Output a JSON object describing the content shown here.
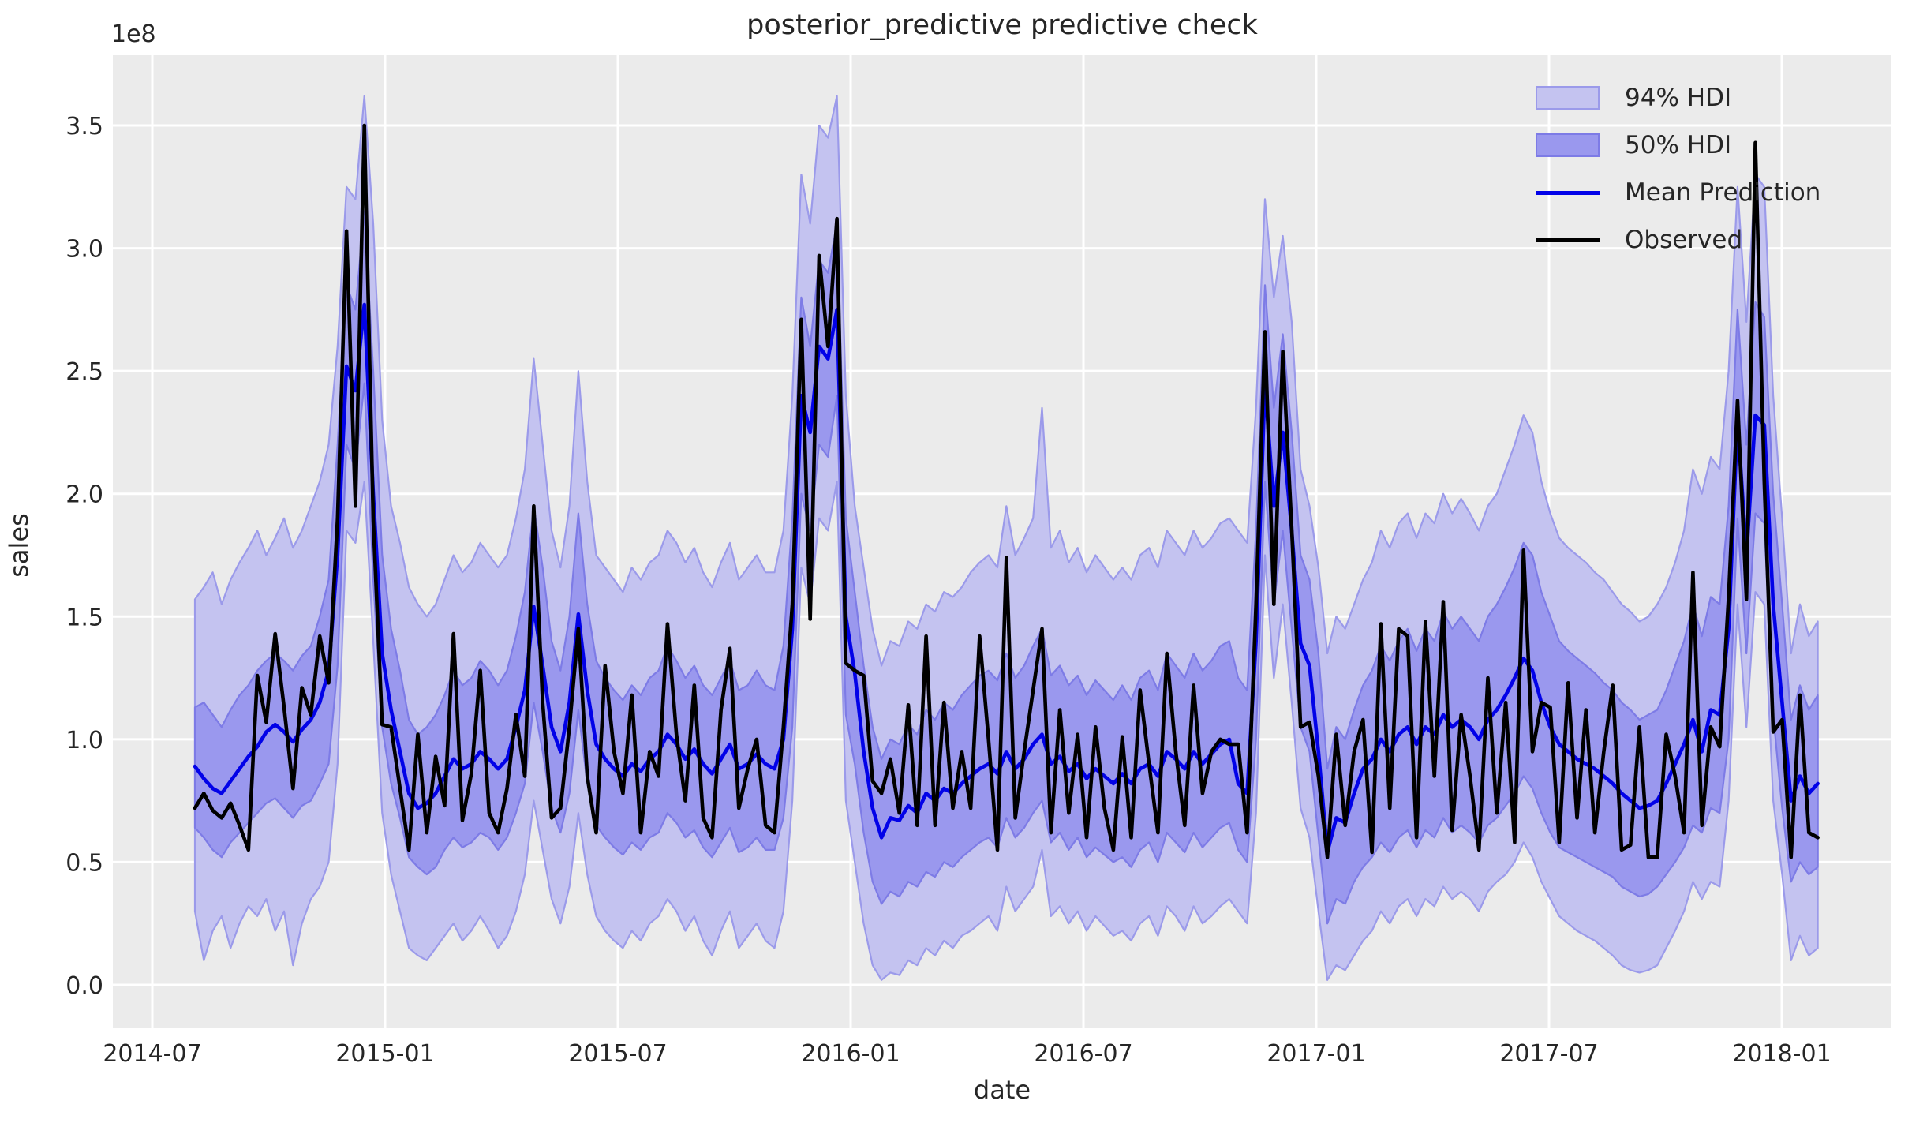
{
  "figure": {
    "title": "posterior_predictive predictive check",
    "offset_text": "1e8",
    "xlabel": "date",
    "ylabel": "sales"
  },
  "chart_data": {
    "type": "line",
    "title": "posterior_predictive predictive check",
    "xlabel": "date",
    "ylabel": "sales",
    "y_offset_label": "1e8",
    "y_unit_multiplier": 100000000,
    "grid": true,
    "legend_position": "upper right",
    "x_tick_labels": [
      "2014-07",
      "2015-01",
      "2015-07",
      "2016-01",
      "2016-07",
      "2017-01",
      "2017-07",
      "2018-01"
    ],
    "y_tick_labels": [
      "0.0",
      "0.5",
      "1.0",
      "1.5",
      "2.0",
      "2.5",
      "3.0",
      "3.5"
    ],
    "y_tick_values": [
      0.0,
      0.5,
      1.0,
      1.5,
      2.0,
      2.5,
      3.0,
      3.5
    ],
    "ylim": [
      -0.18,
      3.79
    ],
    "x_start": "2014-08-03",
    "x_step_days": 7,
    "n_points": 183,
    "colors": {
      "axes_background": "#ebebeb",
      "grid": "#ffffff",
      "hdi94_fill": "#c4c3f0",
      "hdi94_edge": "#9b9aea",
      "hdi50_fill": "#9a98ee",
      "hdi50_edge": "#7d7be6",
      "mean_line": "#0202e8",
      "observed_line": "#000000",
      "text": "#262626"
    },
    "legend": [
      {
        "label": "94% HDI",
        "swatch": "patch"
      },
      {
        "label": "50% HDI",
        "swatch": "patch"
      },
      {
        "label": "Mean Prediction",
        "swatch": "line"
      },
      {
        "label": "Observed",
        "swatch": "line"
      }
    ],
    "series": [
      {
        "name": "Observed",
        "values": [
          0.72,
          0.78,
          0.71,
          0.68,
          0.74,
          0.65,
          0.55,
          1.26,
          1.07,
          1.43,
          1.13,
          0.8,
          1.21,
          1.1,
          1.42,
          1.23,
          1.9,
          3.07,
          1.95,
          3.5,
          1.89,
          1.06,
          1.05,
          0.8,
          0.55,
          1.02,
          0.62,
          0.93,
          0.73,
          1.43,
          0.67,
          0.86,
          1.28,
          0.7,
          0.62,
          0.8,
          1.1,
          0.85,
          1.95,
          1.15,
          0.68,
          0.72,
          1.05,
          1.45,
          0.85,
          0.62,
          1.3,
          0.95,
          0.78,
          1.18,
          0.62,
          0.95,
          0.85,
          1.47,
          1.02,
          0.75,
          1.22,
          0.68,
          0.6,
          1.12,
          1.37,
          0.72,
          0.88,
          1.0,
          0.65,
          0.62,
          1.05,
          1.55,
          2.71,
          1.49,
          2.97,
          2.6,
          3.12,
          1.31,
          1.28,
          1.26,
          0.83,
          0.78,
          0.92,
          0.7,
          1.14,
          0.65,
          1.42,
          0.65,
          1.15,
          0.72,
          0.95,
          0.72,
          1.42,
          1.0,
          0.55,
          1.74,
          0.68,
          0.95,
          1.2,
          1.45,
          0.62,
          1.12,
          0.7,
          1.02,
          0.6,
          1.05,
          0.72,
          0.55,
          1.01,
          0.6,
          1.2,
          0.9,
          0.62,
          1.35,
          0.95,
          0.65,
          1.22,
          0.78,
          0.95,
          1.0,
          0.98,
          0.98,
          0.62,
          1.55,
          2.66,
          1.55,
          2.58,
          1.86,
          1.05,
          1.07,
          0.85,
          0.52,
          1.02,
          0.65,
          0.95,
          1.08,
          0.54,
          1.47,
          0.72,
          1.45,
          1.42,
          0.6,
          1.48,
          0.85,
          1.56,
          0.63,
          1.1,
          0.85,
          0.55,
          1.25,
          0.7,
          1.15,
          0.58,
          1.77,
          0.95,
          1.15,
          1.13,
          0.58,
          1.23,
          0.68,
          1.12,
          0.62,
          0.95,
          1.22,
          0.55,
          0.57,
          1.05,
          0.52,
          0.52,
          1.02,
          0.85,
          0.62,
          1.68,
          0.65,
          1.05,
          0.97,
          1.58,
          2.38,
          1.57,
          3.43,
          2.05,
          1.03,
          1.08,
          0.52,
          1.18,
          0.62,
          0.6
        ]
      },
      {
        "name": "Mean Prediction",
        "values": [
          0.89,
          0.84,
          0.8,
          0.78,
          0.83,
          0.88,
          0.93,
          0.97,
          1.03,
          1.06,
          1.03,
          0.99,
          1.04,
          1.08,
          1.15,
          1.28,
          1.75,
          2.52,
          2.42,
          2.77,
          2.0,
          1.35,
          1.12,
          0.95,
          0.78,
          0.72,
          0.74,
          0.78,
          0.85,
          0.92,
          0.88,
          0.9,
          0.95,
          0.92,
          0.88,
          0.92,
          1.05,
          1.2,
          1.54,
          1.3,
          1.05,
          0.95,
          1.15,
          1.51,
          1.2,
          0.98,
          0.92,
          0.88,
          0.85,
          0.9,
          0.87,
          0.92,
          0.95,
          1.02,
          0.98,
          0.92,
          0.96,
          0.9,
          0.86,
          0.92,
          0.98,
          0.88,
          0.9,
          0.94,
          0.9,
          0.88,
          1.0,
          1.45,
          2.4,
          2.25,
          2.6,
          2.55,
          2.75,
          1.5,
          1.27,
          0.95,
          0.72,
          0.6,
          0.68,
          0.67,
          0.73,
          0.7,
          0.78,
          0.75,
          0.8,
          0.78,
          0.82,
          0.85,
          0.88,
          0.9,
          0.86,
          0.95,
          0.88,
          0.92,
          0.98,
          1.02,
          0.9,
          0.93,
          0.87,
          0.9,
          0.84,
          0.88,
          0.85,
          0.82,
          0.86,
          0.82,
          0.88,
          0.9,
          0.85,
          0.95,
          0.92,
          0.88,
          0.95,
          0.9,
          0.94,
          0.98,
          1.0,
          0.82,
          0.78,
          1.4,
          2.45,
          1.95,
          2.25,
          1.85,
          1.39,
          1.3,
          0.95,
          0.54,
          0.68,
          0.66,
          0.78,
          0.88,
          0.92,
          1.0,
          0.95,
          1.02,
          1.05,
          0.98,
          1.05,
          1.02,
          1.1,
          1.05,
          1.08,
          1.05,
          1.0,
          1.08,
          1.12,
          1.18,
          1.25,
          1.33,
          1.28,
          1.15,
          1.05,
          0.98,
          0.95,
          0.92,
          0.9,
          0.88,
          0.85,
          0.82,
          0.78,
          0.75,
          0.72,
          0.73,
          0.75,
          0.82,
          0.9,
          0.98,
          1.08,
          0.95,
          1.12,
          1.1,
          1.45,
          2.3,
          1.75,
          2.32,
          2.28,
          1.55,
          1.15,
          0.75,
          0.85,
          0.78,
          0.82
        ]
      },
      {
        "name": "94% HDI upper",
        "values": [
          1.57,
          1.62,
          1.68,
          1.55,
          1.65,
          1.72,
          1.78,
          1.85,
          1.75,
          1.82,
          1.9,
          1.78,
          1.85,
          1.95,
          2.05,
          2.2,
          2.6,
          3.25,
          3.2,
          3.62,
          3.1,
          2.3,
          1.95,
          1.8,
          1.62,
          1.55,
          1.5,
          1.55,
          1.65,
          1.75,
          1.68,
          1.72,
          1.8,
          1.75,
          1.7,
          1.75,
          1.9,
          2.1,
          2.55,
          2.2,
          1.85,
          1.7,
          1.95,
          2.5,
          2.05,
          1.75,
          1.7,
          1.65,
          1.6,
          1.7,
          1.65,
          1.72,
          1.75,
          1.85,
          1.8,
          1.72,
          1.78,
          1.68,
          1.62,
          1.72,
          1.8,
          1.65,
          1.7,
          1.75,
          1.68,
          1.68,
          1.85,
          2.4,
          3.3,
          3.1,
          3.5,
          3.45,
          3.62,
          2.4,
          1.95,
          1.7,
          1.45,
          1.3,
          1.4,
          1.38,
          1.48,
          1.45,
          1.55,
          1.52,
          1.6,
          1.58,
          1.62,
          1.68,
          1.72,
          1.75,
          1.7,
          1.95,
          1.75,
          1.82,
          1.9,
          2.35,
          1.78,
          1.85,
          1.72,
          1.78,
          1.68,
          1.75,
          1.7,
          1.65,
          1.7,
          1.65,
          1.75,
          1.78,
          1.7,
          1.85,
          1.8,
          1.75,
          1.85,
          1.78,
          1.82,
          1.88,
          1.9,
          1.85,
          1.8,
          2.35,
          3.2,
          2.8,
          3.05,
          2.7,
          2.1,
          1.95,
          1.7,
          1.35,
          1.5,
          1.45,
          1.55,
          1.65,
          1.72,
          1.85,
          1.78,
          1.88,
          1.92,
          1.82,
          1.92,
          1.88,
          2.0,
          1.92,
          1.98,
          1.92,
          1.85,
          1.95,
          2.0,
          2.1,
          2.2,
          2.32,
          2.25,
          2.05,
          1.92,
          1.82,
          1.78,
          1.75,
          1.72,
          1.68,
          1.65,
          1.6,
          1.55,
          1.52,
          1.48,
          1.5,
          1.55,
          1.62,
          1.72,
          1.85,
          2.1,
          2.0,
          2.15,
          2.1,
          2.5,
          3.25,
          2.7,
          3.3,
          3.25,
          2.4,
          1.9,
          1.35,
          1.55,
          1.42,
          1.48
        ]
      },
      {
        "name": "94% HDI lower",
        "values": [
          0.3,
          0.1,
          0.22,
          0.28,
          0.15,
          0.25,
          0.32,
          0.28,
          0.35,
          0.22,
          0.3,
          0.08,
          0.25,
          0.35,
          0.4,
          0.5,
          0.9,
          1.85,
          1.8,
          2.05,
          1.4,
          0.7,
          0.45,
          0.3,
          0.15,
          0.12,
          0.1,
          0.15,
          0.2,
          0.25,
          0.18,
          0.22,
          0.28,
          0.22,
          0.15,
          0.2,
          0.3,
          0.45,
          0.75,
          0.55,
          0.35,
          0.25,
          0.4,
          0.7,
          0.45,
          0.28,
          0.22,
          0.18,
          0.15,
          0.22,
          0.18,
          0.25,
          0.28,
          0.35,
          0.3,
          0.22,
          0.28,
          0.18,
          0.12,
          0.22,
          0.3,
          0.15,
          0.2,
          0.25,
          0.18,
          0.15,
          0.3,
          0.75,
          1.7,
          1.55,
          1.9,
          1.85,
          2.05,
          0.75,
          0.5,
          0.25,
          0.08,
          0.02,
          0.05,
          0.04,
          0.1,
          0.08,
          0.15,
          0.12,
          0.18,
          0.15,
          0.2,
          0.22,
          0.25,
          0.28,
          0.22,
          0.4,
          0.3,
          0.35,
          0.4,
          0.55,
          0.28,
          0.32,
          0.25,
          0.3,
          0.22,
          0.28,
          0.24,
          0.2,
          0.22,
          0.18,
          0.25,
          0.28,
          0.2,
          0.32,
          0.28,
          0.22,
          0.32,
          0.25,
          0.28,
          0.32,
          0.35,
          0.3,
          0.25,
          0.7,
          1.75,
          1.25,
          1.55,
          1.15,
          0.72,
          0.6,
          0.3,
          0.02,
          0.08,
          0.06,
          0.12,
          0.18,
          0.22,
          0.3,
          0.25,
          0.32,
          0.35,
          0.28,
          0.35,
          0.32,
          0.4,
          0.35,
          0.38,
          0.35,
          0.3,
          0.38,
          0.42,
          0.45,
          0.5,
          0.58,
          0.52,
          0.42,
          0.35,
          0.28,
          0.25,
          0.22,
          0.2,
          0.18,
          0.15,
          0.12,
          0.08,
          0.06,
          0.05,
          0.06,
          0.08,
          0.15,
          0.22,
          0.3,
          0.42,
          0.35,
          0.42,
          0.4,
          0.75,
          1.55,
          1.05,
          1.6,
          1.55,
          0.75,
          0.45,
          0.1,
          0.2,
          0.12,
          0.15
        ]
      },
      {
        "name": "50% HDI upper",
        "values": [
          1.13,
          1.15,
          1.1,
          1.05,
          1.12,
          1.18,
          1.22,
          1.28,
          1.32,
          1.35,
          1.32,
          1.28,
          1.34,
          1.38,
          1.5,
          1.65,
          2.2,
          2.85,
          2.75,
          3.15,
          2.5,
          1.75,
          1.45,
          1.28,
          1.08,
          1.02,
          1.05,
          1.1,
          1.18,
          1.28,
          1.22,
          1.25,
          1.32,
          1.28,
          1.22,
          1.28,
          1.42,
          1.6,
          1.95,
          1.7,
          1.4,
          1.28,
          1.5,
          1.92,
          1.55,
          1.32,
          1.25,
          1.2,
          1.16,
          1.22,
          1.18,
          1.25,
          1.28,
          1.38,
          1.32,
          1.25,
          1.3,
          1.22,
          1.18,
          1.25,
          1.32,
          1.2,
          1.22,
          1.28,
          1.22,
          1.2,
          1.38,
          1.9,
          2.8,
          2.6,
          2.95,
          2.9,
          3.1,
          1.9,
          1.6,
          1.3,
          1.05,
          0.92,
          1.0,
          0.98,
          1.06,
          1.02,
          1.12,
          1.08,
          1.15,
          1.12,
          1.18,
          1.22,
          1.26,
          1.28,
          1.24,
          1.35,
          1.25,
          1.3,
          1.38,
          1.45,
          1.26,
          1.3,
          1.22,
          1.26,
          1.18,
          1.24,
          1.2,
          1.16,
          1.22,
          1.16,
          1.25,
          1.28,
          1.2,
          1.35,
          1.3,
          1.25,
          1.35,
          1.28,
          1.32,
          1.38,
          1.4,
          1.25,
          1.2,
          1.85,
          2.85,
          2.35,
          2.65,
          2.25,
          1.75,
          1.65,
          1.35,
          0.88,
          1.05,
          1.0,
          1.12,
          1.22,
          1.28,
          1.38,
          1.32,
          1.4,
          1.45,
          1.36,
          1.45,
          1.4,
          1.52,
          1.45,
          1.5,
          1.45,
          1.4,
          1.5,
          1.55,
          1.62,
          1.7,
          1.8,
          1.75,
          1.6,
          1.5,
          1.4,
          1.36,
          1.33,
          1.3,
          1.27,
          1.23,
          1.2,
          1.15,
          1.12,
          1.08,
          1.1,
          1.12,
          1.2,
          1.3,
          1.4,
          1.55,
          1.42,
          1.58,
          1.55,
          1.95,
          2.75,
          2.2,
          2.78,
          2.72,
          2.0,
          1.55,
          1.08,
          1.22,
          1.12,
          1.18
        ]
      },
      {
        "name": "50% HDI lower",
        "values": [
          0.64,
          0.6,
          0.55,
          0.52,
          0.58,
          0.62,
          0.66,
          0.7,
          0.74,
          0.76,
          0.72,
          0.68,
          0.73,
          0.75,
          0.82,
          0.9,
          1.3,
          2.2,
          2.1,
          2.45,
          1.65,
          1.05,
          0.82,
          0.68,
          0.52,
          0.48,
          0.45,
          0.48,
          0.55,
          0.6,
          0.56,
          0.58,
          0.62,
          0.6,
          0.55,
          0.6,
          0.7,
          0.82,
          1.15,
          0.95,
          0.72,
          0.62,
          0.78,
          1.12,
          0.82,
          0.65,
          0.6,
          0.56,
          0.53,
          0.58,
          0.55,
          0.6,
          0.62,
          0.7,
          0.66,
          0.6,
          0.63,
          0.56,
          0.52,
          0.58,
          0.64,
          0.54,
          0.56,
          0.6,
          0.55,
          0.55,
          0.68,
          1.05,
          2.0,
          1.85,
          2.2,
          2.15,
          2.4,
          1.1,
          0.9,
          0.62,
          0.42,
          0.33,
          0.38,
          0.36,
          0.42,
          0.4,
          0.46,
          0.44,
          0.5,
          0.48,
          0.52,
          0.55,
          0.58,
          0.6,
          0.56,
          0.68,
          0.6,
          0.64,
          0.7,
          0.75,
          0.58,
          0.62,
          0.55,
          0.6,
          0.52,
          0.56,
          0.53,
          0.5,
          0.52,
          0.48,
          0.55,
          0.58,
          0.5,
          0.62,
          0.58,
          0.54,
          0.62,
          0.56,
          0.6,
          0.64,
          0.66,
          0.55,
          0.5,
          1.0,
          2.05,
          1.55,
          1.85,
          1.45,
          1.05,
          0.95,
          0.6,
          0.25,
          0.35,
          0.33,
          0.42,
          0.48,
          0.52,
          0.58,
          0.54,
          0.6,
          0.63,
          0.56,
          0.63,
          0.6,
          0.68,
          0.62,
          0.65,
          0.62,
          0.58,
          0.65,
          0.68,
          0.73,
          0.78,
          0.85,
          0.8,
          0.7,
          0.62,
          0.56,
          0.54,
          0.52,
          0.5,
          0.48,
          0.46,
          0.44,
          0.4,
          0.38,
          0.36,
          0.37,
          0.4,
          0.45,
          0.5,
          0.56,
          0.65,
          0.62,
          0.72,
          0.7,
          1.0,
          1.9,
          1.35,
          1.92,
          1.88,
          1.1,
          0.72,
          0.42,
          0.5,
          0.45,
          0.48
        ]
      }
    ]
  }
}
